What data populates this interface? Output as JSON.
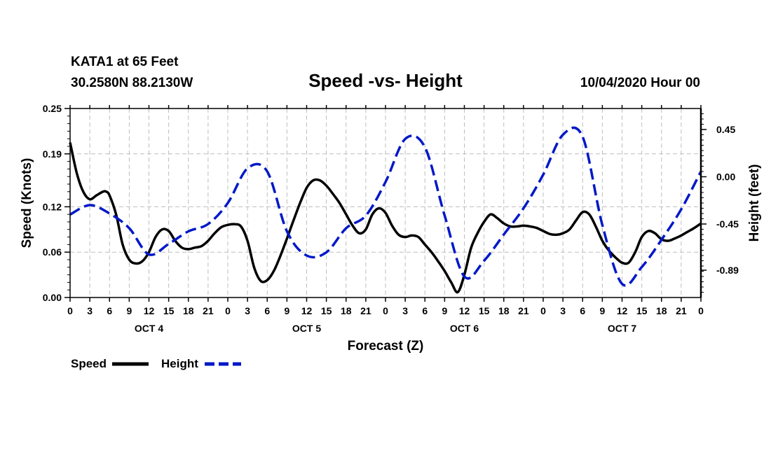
{
  "header": {
    "station": "KATA1 at 65 Feet",
    "coords": "30.2580N 88.2130W",
    "title": "Speed -vs- Height",
    "datetime": "10/04/2020 Hour 00"
  },
  "legend": {
    "speed_label": "Speed",
    "height_label": "Height"
  },
  "chart_data": {
    "type": "line",
    "title": "Speed -vs- Height",
    "xlabel": "Forecast (Z)",
    "ylabel_left": "Speed (Knots)",
    "ylabel_right": "Height (feet)",
    "x_range": [
      0,
      96
    ],
    "x_ticks": [
      0,
      3,
      6,
      9,
      12,
      15,
      18,
      21,
      24,
      27,
      30,
      33,
      36,
      39,
      42,
      45,
      48,
      51,
      54,
      57,
      60,
      63,
      66,
      69,
      72,
      75,
      78,
      81,
      84,
      87,
      90,
      93,
      96
    ],
    "x_tick_labels": [
      "0",
      "3",
      "6",
      "9",
      "12",
      "15",
      "18",
      "21",
      "0",
      "3",
      "6",
      "9",
      "12",
      "15",
      "18",
      "21",
      "0",
      "3",
      "6",
      "9",
      "12",
      "15",
      "18",
      "21",
      "0",
      "3",
      "6",
      "9",
      "12",
      "15",
      "18",
      "21",
      "0"
    ],
    "day_labels": [
      {
        "label": "OCT 4",
        "x": 12
      },
      {
        "label": "OCT 5",
        "x": 36
      },
      {
        "label": "OCT 6",
        "x": 60
      },
      {
        "label": "OCT 7",
        "x": 84
      }
    ],
    "left_axis": {
      "range": [
        0.0,
        0.25
      ],
      "ticks": [
        0.0,
        0.06,
        0.12,
        0.19,
        0.25
      ],
      "tick_labels": [
        "0.00",
        "0.06",
        "0.12",
        "0.19",
        "0.25"
      ]
    },
    "right_axis": {
      "range": [
        -1.15,
        0.65
      ],
      "ticks": [
        -0.89,
        -0.45,
        0.0,
        0.45
      ],
      "tick_labels": [
        "-0.89",
        "-0.45",
        "0.00",
        "0.45"
      ]
    },
    "grid": true,
    "legend_position": "bottom-left",
    "series": [
      {
        "name": "Speed",
        "axis": "left",
        "color": "#000000",
        "dash": "solid",
        "x": [
          0,
          1,
          2,
          3,
          4,
          5,
          5.5,
          6,
          7,
          8,
          9,
          10,
          11,
          12,
          13,
          14,
          15,
          16,
          17,
          18,
          19,
          20,
          21,
          22,
          23,
          24,
          25,
          26,
          27,
          28,
          29,
          30,
          31,
          32,
          33,
          34,
          35,
          36,
          37,
          38,
          39,
          40,
          41,
          42,
          43,
          44,
          45,
          46,
          47,
          48,
          49,
          50,
          51,
          52,
          53,
          54,
          55,
          56,
          57,
          58,
          59,
          60,
          61,
          62,
          63,
          64,
          65,
          66,
          67,
          68,
          69,
          70,
          71,
          72,
          73,
          74,
          75,
          76,
          77,
          78,
          79,
          80,
          81,
          82,
          83,
          84,
          85,
          86,
          87,
          88,
          89,
          90,
          91,
          92,
          93,
          94,
          95,
          96
        ],
        "values": [
          0.205,
          0.165,
          0.14,
          0.13,
          0.135,
          0.14,
          0.14,
          0.135,
          0.11,
          0.07,
          0.05,
          0.045,
          0.048,
          0.06,
          0.08,
          0.09,
          0.088,
          0.075,
          0.066,
          0.064,
          0.066,
          0.068,
          0.075,
          0.085,
          0.093,
          0.096,
          0.097,
          0.094,
          0.075,
          0.04,
          0.022,
          0.023,
          0.035,
          0.055,
          0.078,
          0.102,
          0.125,
          0.145,
          0.155,
          0.155,
          0.148,
          0.137,
          0.125,
          0.11,
          0.095,
          0.085,
          0.09,
          0.11,
          0.118,
          0.112,
          0.095,
          0.083,
          0.08,
          0.082,
          0.08,
          0.07,
          0.06,
          0.048,
          0.035,
          0.02,
          0.007,
          0.03,
          0.065,
          0.085,
          0.1,
          0.11,
          0.105,
          0.098,
          0.094,
          0.094,
          0.095,
          0.094,
          0.092,
          0.088,
          0.084,
          0.083,
          0.085,
          0.09,
          0.102,
          0.113,
          0.11,
          0.094,
          0.075,
          0.062,
          0.053,
          0.046,
          0.046,
          0.06,
          0.08,
          0.088,
          0.085,
          0.077,
          0.075,
          0.078,
          0.082,
          0.087,
          0.092,
          0.098
        ]
      },
      {
        "name": "Height",
        "axis": "right",
        "color": "#0018c8",
        "dash": "dashed",
        "x": [
          0,
          3,
          6,
          9,
          12,
          15,
          18,
          21,
          24,
          27,
          30,
          33,
          36,
          39,
          42,
          45,
          48,
          51,
          54,
          57,
          60,
          63,
          66,
          69,
          72,
          75,
          78,
          81,
          84,
          87,
          90,
          93,
          96
        ],
        "values": [
          -0.36,
          -0.27,
          -0.35,
          -0.49,
          -0.74,
          -0.64,
          -0.52,
          -0.45,
          -0.25,
          0.08,
          0.05,
          -0.52,
          -0.75,
          -0.72,
          -0.49,
          -0.37,
          -0.05,
          0.36,
          0.28,
          -0.37,
          -0.95,
          -0.8,
          -0.55,
          -0.3,
          0.02,
          0.4,
          0.38,
          -0.46,
          -1.02,
          -0.86,
          -0.6,
          -0.31,
          0.05
        ]
      }
    ]
  }
}
